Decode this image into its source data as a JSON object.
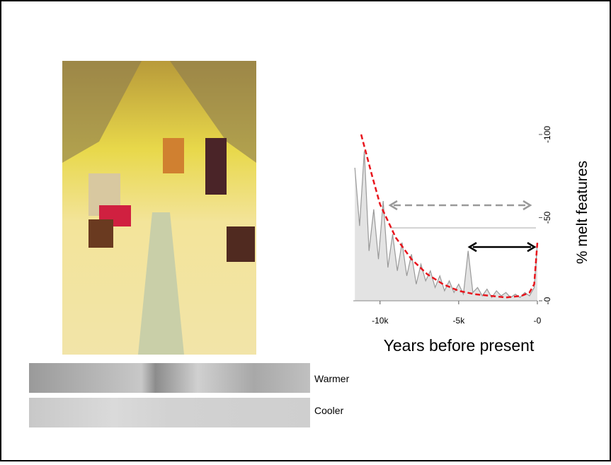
{
  "chart_data": {
    "type": "line",
    "xlabel": "Years before present",
    "ylabel": "% melt features",
    "xlim": [
      -11700,
      0
    ],
    "ylim": [
      0,
      100
    ],
    "xticks": [
      {
        "value": -10000,
        "label": "-10k"
      },
      {
        "value": -5000,
        "label": "-5k"
      },
      {
        "value": 0,
        "label": "-0"
      }
    ],
    "yticks": [
      {
        "value": 0,
        "label": "-0"
      },
      {
        "value": 50,
        "label": "-50"
      },
      {
        "value": 100,
        "label": "-100"
      }
    ],
    "series": [
      {
        "color": "#999999",
        "fill": "#e3e3e3",
        "x": [
          -11600,
          -11300,
          -11000,
          -10700,
          -10400,
          -10100,
          -9800,
          -9500,
          -9200,
          -8900,
          -8600,
          -8300,
          -8000,
          -7700,
          -7400,
          -7100,
          -6800,
          -6500,
          -6200,
          -5900,
          -5600,
          -5300,
          -5000,
          -4700,
          -4400,
          -4100,
          -3800,
          -3500,
          -3200,
          -2900,
          -2600,
          -2300,
          -2000,
          -1700,
          -1400,
          -1100,
          -800,
          -500,
          -200,
          0
        ],
        "values": [
          80,
          45,
          90,
          30,
          55,
          25,
          60,
          20,
          40,
          18,
          35,
          15,
          28,
          10,
          22,
          12,
          18,
          8,
          15,
          6,
          12,
          5,
          10,
          4,
          30,
          5,
          8,
          3,
          7,
          2,
          6,
          3,
          5,
          2,
          4,
          2,
          5,
          3,
          8,
          35
        ]
      },
      {
        "color": "#e8141c",
        "dashed": true,
        "x": [
          -11200,
          -10500,
          -10000,
          -9000,
          -8000,
          -7000,
          -6000,
          -5000,
          -4000,
          -3000,
          -2000,
          -1000,
          -500,
          -200,
          0
        ],
        "values": [
          100,
          75,
          58,
          38,
          25,
          16,
          10,
          6,
          4,
          3,
          2,
          3,
          5,
          10,
          35
        ]
      }
    ]
  },
  "labels": {
    "warmer": "Warmer",
    "cooler": "Cooler"
  }
}
